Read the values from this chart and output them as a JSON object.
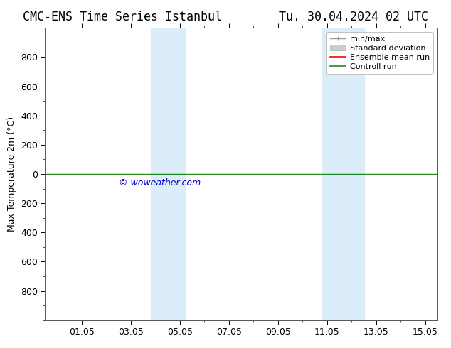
{
  "title": "CMC-ENS Time Series Istanbul",
  "title_date": "Tu. 30.04.2024 02 UTC",
  "ylabel": "Max Temperature 2m (°C)",
  "background_color": "#ffffff",
  "plot_bg_color": "#ffffff",
  "ylim_bottom": 1000,
  "ylim_top": -1000,
  "x_min": -0.5,
  "x_max": 15.5,
  "x_ticks": [
    "01.05",
    "03.05",
    "05.05",
    "07.05",
    "09.05",
    "11.05",
    "13.05",
    "15.05"
  ],
  "x_tick_positions": [
    1,
    3,
    5,
    7,
    9,
    11,
    13,
    15
  ],
  "shaded_regions": [
    {
      "x_start": 3.8,
      "x_end": 5.2,
      "color": "#daedf9"
    },
    {
      "x_start": 10.8,
      "x_end": 12.5,
      "color": "#daedf9"
    }
  ],
  "control_run_y": 0,
  "control_run_color": "#228b22",
  "ensemble_mean_color": "#ff0000",
  "watermark": "© woweather.com",
  "watermark_color": "#0000cc",
  "watermark_x_data": 2.5,
  "watermark_y_data": 60,
  "legend_entries": [
    "min/max",
    "Standard deviation",
    "Ensemble mean run",
    "Controll run"
  ],
  "legend_colors": [
    "#999999",
    "#cccccc",
    "#ff0000",
    "#228b22"
  ],
  "font_size_title": 12,
  "font_size_axis": 9,
  "font_size_legend": 8,
  "font_size_watermark": 9,
  "yticks": [
    -800,
    -600,
    -400,
    -200,
    0,
    200,
    400,
    600,
    800
  ],
  "ytick_minor": 100
}
